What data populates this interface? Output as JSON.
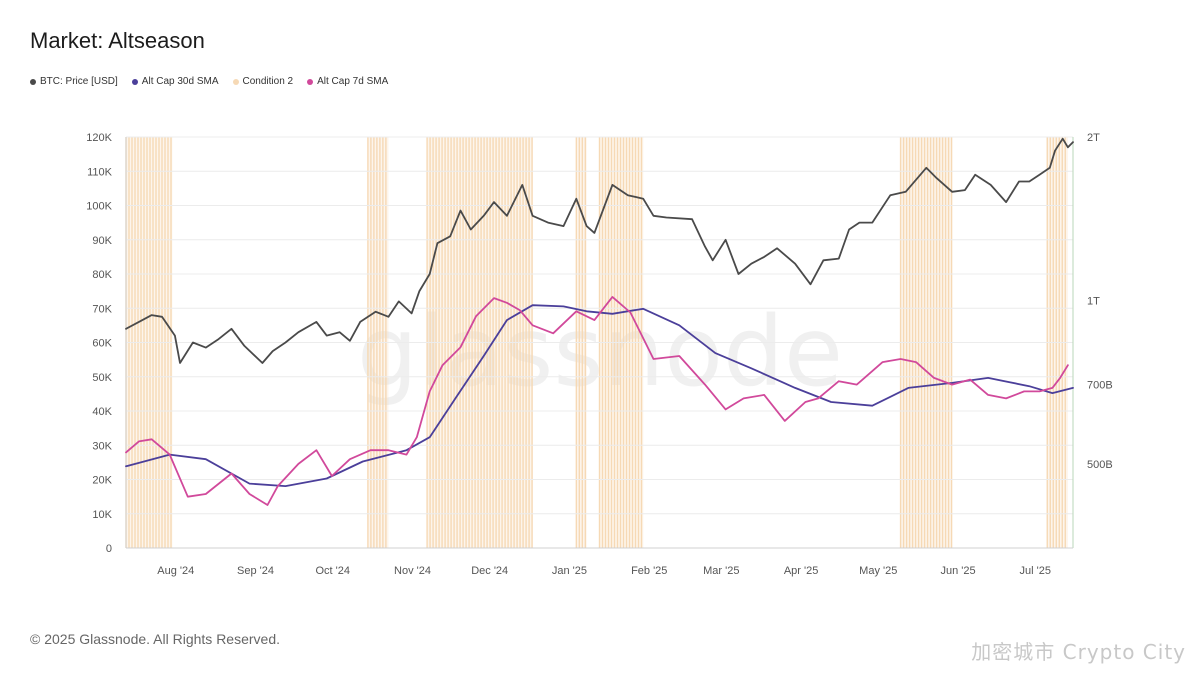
{
  "title": "Market: Altseason",
  "footer": "© 2025 Glassnode. All Rights Reserved.",
  "watermark": "glassnode",
  "corner_watermark": "加密城市 Crypto City",
  "colors": {
    "btc": "#4a4a4a",
    "sma30": "#4b3f9a",
    "condition2": "#f6d9b5",
    "sma7": "#d1499b",
    "grid": "#ececec"
  },
  "legend": [
    {
      "label": "BTC: Price [USD]",
      "color": "#4a4a4a"
    },
    {
      "label": "Alt Cap 30d SMA",
      "color": "#4b3f9a"
    },
    {
      "label": "Condition 2",
      "color": "#f6d9b5"
    },
    {
      "label": "Alt Cap 7d SMA",
      "color": "#d1499b"
    }
  ],
  "chart_data": {
    "type": "line",
    "x_range": [
      "2024-07-15",
      "2025-07-18"
    ],
    "x_ticks": [
      {
        "label": "Aug '24",
        "date": "2024-08-01"
      },
      {
        "label": "Sep '24",
        "date": "2024-09-01"
      },
      {
        "label": "Oct '24",
        "date": "2024-10-01"
      },
      {
        "label": "Nov '24",
        "date": "2024-11-01"
      },
      {
        "label": "Dec '24",
        "date": "2024-12-01"
      },
      {
        "label": "Jan '25",
        "date": "2025-01-01"
      },
      {
        "label": "Feb '25",
        "date": "2025-02-01"
      },
      {
        "label": "Mar '25",
        "date": "2025-03-01"
      },
      {
        "label": "Apr '25",
        "date": "2025-04-01"
      },
      {
        "label": "May '25",
        "date": "2025-05-01"
      },
      {
        "label": "Jun '25",
        "date": "2025-06-01"
      },
      {
        "label": "Jul '25",
        "date": "2025-07-01"
      }
    ],
    "y_left": {
      "min": 0,
      "max": 120000,
      "ticks": [
        {
          "label": "0",
          "value": 0
        },
        {
          "label": "10K",
          "value": 10000
        },
        {
          "label": "20K",
          "value": 20000
        },
        {
          "label": "30K",
          "value": 30000
        },
        {
          "label": "40K",
          "value": 40000
        },
        {
          "label": "50K",
          "value": 50000
        },
        {
          "label": "60K",
          "value": 60000
        },
        {
          "label": "70K",
          "value": 70000
        },
        {
          "label": "80K",
          "value": 80000
        },
        {
          "label": "90K",
          "value": 90000
        },
        {
          "label": "100K",
          "value": 100000
        },
        {
          "label": "110K",
          "value": 110000
        },
        {
          "label": "120K",
          "value": 120000
        }
      ]
    },
    "y_right": {
      "scale": "log",
      "min": 350000000000,
      "max": 2000000000000,
      "ticks": [
        {
          "label": "500B",
          "value": 500000000000
        },
        {
          "label": "700B",
          "value": 700000000000
        },
        {
          "label": "1T",
          "value": 1000000000000
        },
        {
          "label": "2T",
          "value": 2000000000000
        }
      ]
    },
    "condition2_periods": [
      [
        "2024-07-15",
        "2024-08-02"
      ],
      [
        "2024-10-17",
        "2024-10-25"
      ],
      [
        "2024-11-09",
        "2024-12-20"
      ],
      [
        "2025-01-06",
        "2025-01-10"
      ],
      [
        "2025-01-15",
        "2025-02-01"
      ],
      [
        "2025-05-12",
        "2025-06-01"
      ],
      [
        "2025-07-08",
        "2025-07-16"
      ]
    ],
    "series": [
      {
        "name": "BTC: Price [USD]",
        "axis": "left",
        "x": [
          "2024-07-15",
          "2024-07-20",
          "2024-07-25",
          "2024-07-29",
          "2024-08-03",
          "2024-08-05",
          "2024-08-10",
          "2024-08-15",
          "2024-08-20",
          "2024-08-25",
          "2024-08-30",
          "2024-09-06",
          "2024-09-10",
          "2024-09-15",
          "2024-09-20",
          "2024-09-27",
          "2024-10-01",
          "2024-10-06",
          "2024-10-10",
          "2024-10-14",
          "2024-10-20",
          "2024-10-25",
          "2024-10-29",
          "2024-11-03",
          "2024-11-06",
          "2024-11-10",
          "2024-11-13",
          "2024-11-18",
          "2024-11-22",
          "2024-11-26",
          "2024-12-01",
          "2024-12-05",
          "2024-12-10",
          "2024-12-16",
          "2024-12-20",
          "2024-12-26",
          "2025-01-01",
          "2025-01-06",
          "2025-01-10",
          "2025-01-13",
          "2025-01-20",
          "2025-01-26",
          "2025-02-01",
          "2025-02-05",
          "2025-02-10",
          "2025-02-20",
          "2025-02-25",
          "2025-02-28",
          "2025-03-05",
          "2025-03-10",
          "2025-03-15",
          "2025-03-20",
          "2025-03-25",
          "2025-04-01",
          "2025-04-07",
          "2025-04-12",
          "2025-04-18",
          "2025-04-22",
          "2025-04-26",
          "2025-05-01",
          "2025-05-08",
          "2025-05-14",
          "2025-05-22",
          "2025-05-26",
          "2025-06-01",
          "2025-06-06",
          "2025-06-10",
          "2025-06-16",
          "2025-06-22",
          "2025-06-27",
          "2025-07-01",
          "2025-07-05",
          "2025-07-09",
          "2025-07-11",
          "2025-07-14",
          "2025-07-16",
          "2025-07-18"
        ],
        "values": [
          64000,
          66000,
          68000,
          67500,
          62000,
          54000,
          60000,
          58500,
          61000,
          64000,
          59000,
          54000,
          57500,
          60000,
          63000,
          66000,
          62000,
          63000,
          60500,
          66000,
          69000,
          67500,
          72000,
          68500,
          75000,
          80000,
          89000,
          91000,
          98500,
          93000,
          97000,
          101000,
          97000,
          106000,
          97000,
          95000,
          94000,
          102000,
          94000,
          92000,
          106000,
          103000,
          102000,
          97000,
          96500,
          96000,
          88000,
          84000,
          90000,
          80000,
          83000,
          85000,
          87500,
          83000,
          77000,
          84000,
          84500,
          93000,
          95000,
          95000,
          103000,
          104000,
          111000,
          108000,
          104000,
          104500,
          109000,
          106000,
          101000,
          107000,
          107000,
          109000,
          111000,
          116000,
          119500,
          117000,
          118500
        ]
      },
      {
        "name": "Alt Cap 30d SMA",
        "axis": "right",
        "x": [
          "2024-07-15",
          "2024-08-01",
          "2024-08-15",
          "2024-09-01",
          "2024-09-15",
          "2024-10-01",
          "2024-10-15",
          "2024-11-01",
          "2024-11-10",
          "2024-11-20",
          "2024-12-01",
          "2024-12-10",
          "2024-12-20",
          "2025-01-01",
          "2025-01-10",
          "2025-01-20",
          "2025-02-01",
          "2025-02-15",
          "2025-03-01",
          "2025-03-15",
          "2025-04-01",
          "2025-04-15",
          "2025-05-01",
          "2025-05-15",
          "2025-06-01",
          "2025-06-15",
          "2025-07-01",
          "2025-07-10",
          "2025-07-18"
        ],
        "values": [
          495000000000,
          520000000000,
          510000000000,
          460000000000,
          455000000000,
          470000000000,
          505000000000,
          530000000000,
          560000000000,
          660000000000,
          790000000000,
          920000000000,
          980000000000,
          975000000000,
          955000000000,
          945000000000,
          965000000000,
          900000000000,
          800000000000,
          750000000000,
          690000000000,
          650000000000,
          640000000000,
          690000000000,
          705000000000,
          720000000000,
          695000000000,
          675000000000,
          690000000000
        ]
      },
      {
        "name": "Alt Cap 7d SMA",
        "axis": "right",
        "x": [
          "2024-07-15",
          "2024-07-20",
          "2024-07-25",
          "2024-08-01",
          "2024-08-08",
          "2024-08-15",
          "2024-08-25",
          "2024-09-01",
          "2024-09-08",
          "2024-09-12",
          "2024-09-20",
          "2024-09-27",
          "2024-10-03",
          "2024-10-10",
          "2024-10-18",
          "2024-10-25",
          "2024-11-01",
          "2024-11-05",
          "2024-11-10",
          "2024-11-15",
          "2024-11-22",
          "2024-11-28",
          "2024-12-05",
          "2024-12-10",
          "2024-12-15",
          "2024-12-20",
          "2024-12-28",
          "2025-01-06",
          "2025-01-13",
          "2025-01-20",
          "2025-01-27",
          "2025-02-05",
          "2025-02-15",
          "2025-02-25",
          "2025-03-05",
          "2025-03-12",
          "2025-03-20",
          "2025-03-28",
          "2025-04-05",
          "2025-04-10",
          "2025-04-18",
          "2025-04-25",
          "2025-05-05",
          "2025-05-12",
          "2025-05-18",
          "2025-05-25",
          "2025-06-01",
          "2025-06-08",
          "2025-06-15",
          "2025-06-22",
          "2025-06-29",
          "2025-07-05",
          "2025-07-10",
          "2025-07-13",
          "2025-07-16"
        ],
        "values": [
          525000000000,
          550000000000,
          555000000000,
          520000000000,
          435000000000,
          440000000000,
          480000000000,
          440000000000,
          420000000000,
          455000000000,
          500000000000,
          530000000000,
          475000000000,
          510000000000,
          530000000000,
          530000000000,
          520000000000,
          560000000000,
          680000000000,
          760000000000,
          820000000000,
          935000000000,
          1010000000000,
          990000000000,
          960000000000,
          900000000000,
          870000000000,
          955000000000,
          920000000000,
          1015000000000,
          950000000000,
          780000000000,
          790000000000,
          700000000000,
          630000000000,
          660000000000,
          670000000000,
          600000000000,
          650000000000,
          660000000000,
          710000000000,
          700000000000,
          770000000000,
          780000000000,
          770000000000,
          720000000000,
          700000000000,
          715000000000,
          670000000000,
          660000000000,
          680000000000,
          680000000000,
          690000000000,
          720000000000,
          760000000000
        ]
      }
    ]
  }
}
